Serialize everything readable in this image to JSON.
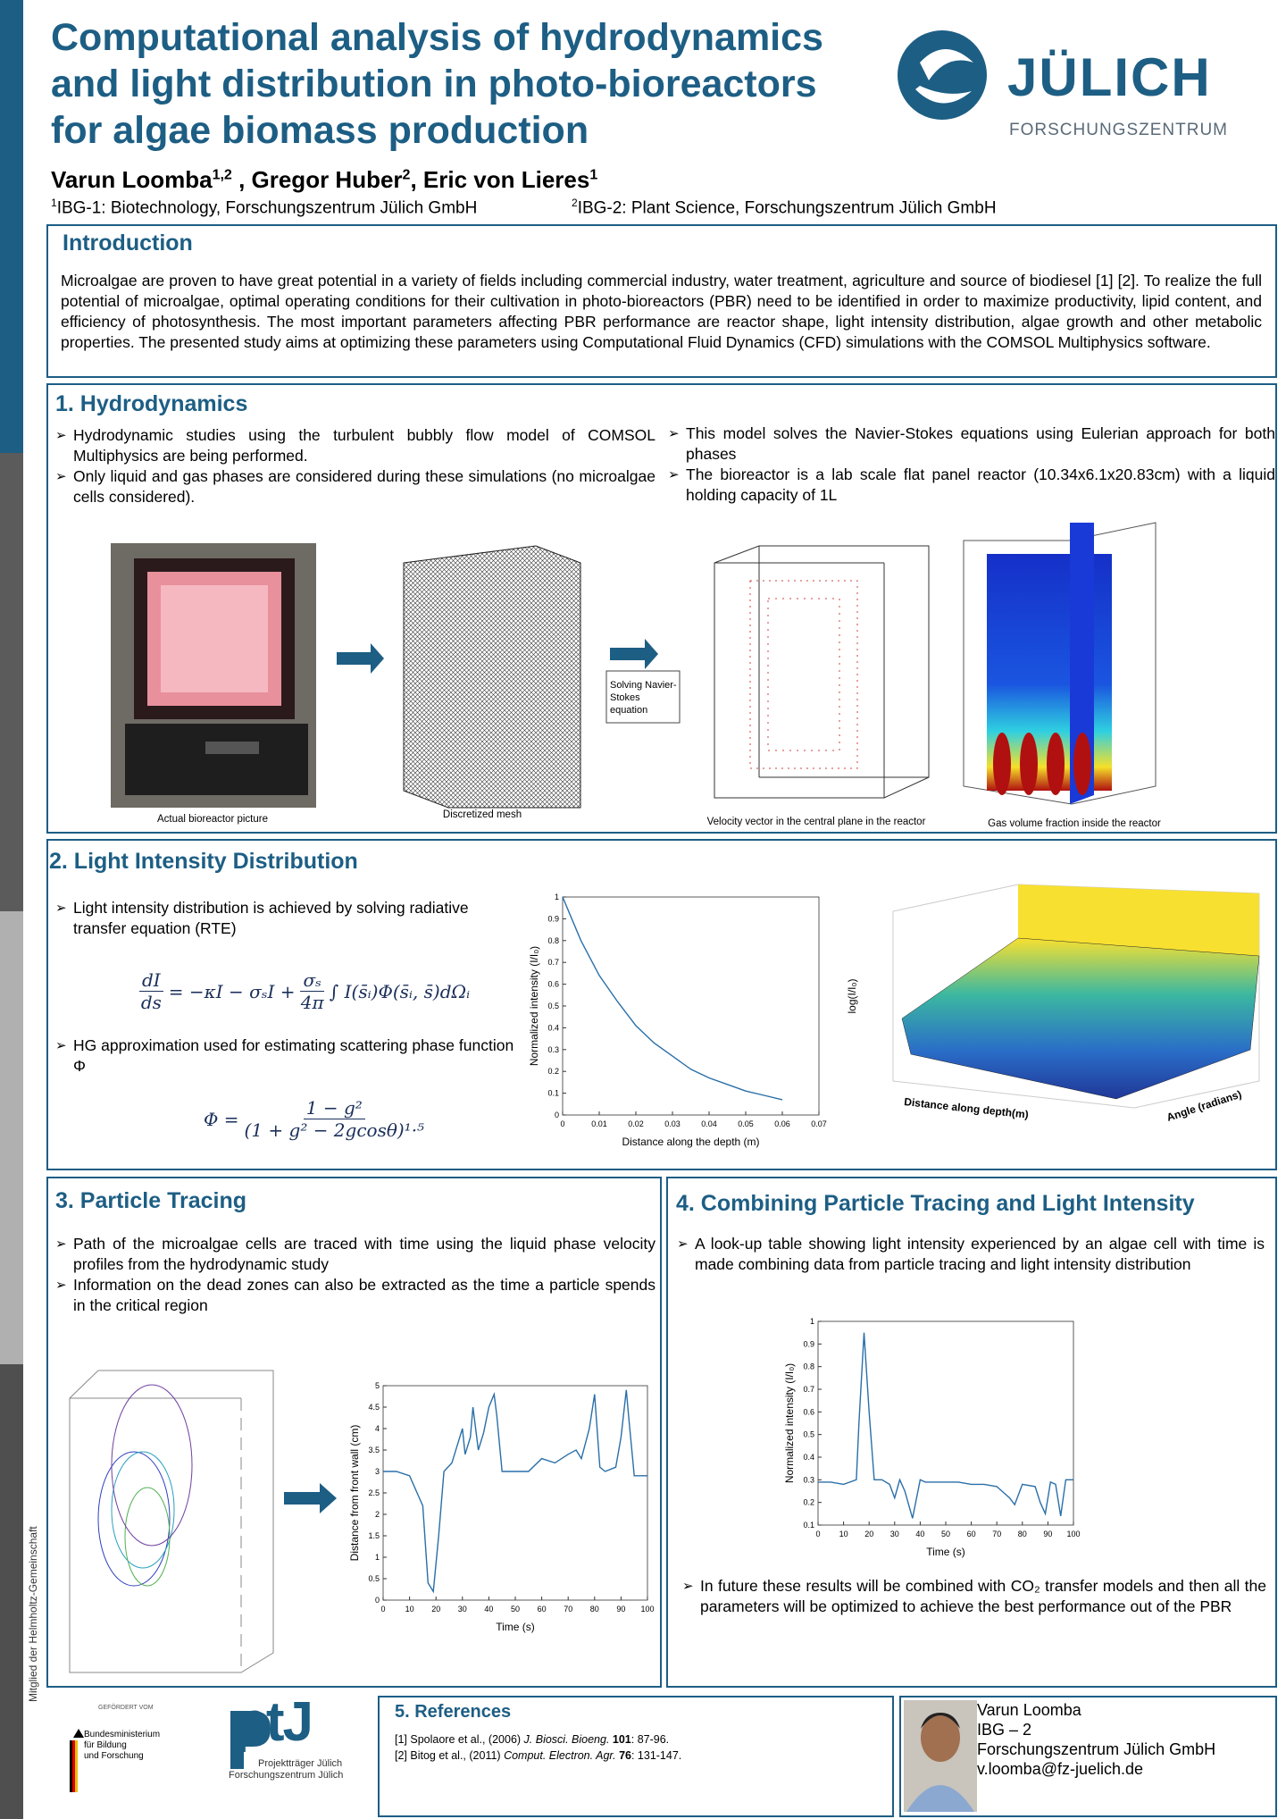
{
  "header": {
    "title_lines": [
      "Computational analysis of hydrodynamics",
      "and light distribution in photo-bioreactors",
      "for algae biomass production"
    ],
    "authors": [
      {
        "name": "Varun Loomba",
        "sup": "1,2"
      },
      {
        "name": " , Gregor Huber",
        "sup": "2"
      },
      {
        "name": ", Eric von Lieres",
        "sup": "1"
      }
    ],
    "affiliations": [
      {
        "sup": "1",
        "text": "IBG-1: Biotechnology, Forschungszentrum Jülich GmbH"
      },
      {
        "sup": "2",
        "text": "IBG-2: Plant Science, Forschungszentrum Jülich GmbH"
      }
    ],
    "logo": {
      "name": "JÜLICH",
      "sub": "FORSCHUNGSZENTRUM"
    }
  },
  "sidebar_text": "Mitglied der Helmholtz-Gemeinschaft",
  "introduction": {
    "heading": "Introduction",
    "text": "Microalgae are proven to have great potential in a variety of fields including commercial industry, water treatment, agriculture and source of biodiesel [1] [2]. To realize the full potential of microalgae, optimal operating conditions for their cultivation in photo-bioreactors (PBR) need to be identified in order to maximize productivity, lipid content, and efficiency of photosynthesis. The most important parameters affecting PBR performance are reactor shape, light intensity distribution, algae growth and other metabolic properties. The presented study aims at optimizing these parameters using Computational Fluid Dynamics (CFD) simulations with the COMSOL Multiphysics software."
  },
  "section1": {
    "heading": "1. Hydrodynamics",
    "bullets_left": [
      "Hydrodynamic studies using the turbulent bubbly flow model of COMSOL Multiphysics are being performed.",
      "Only liquid and gas phases are considered during these simulations (no microalgae cells considered)."
    ],
    "bullets_right": [
      "This model solves the Navier-Stokes equations using Eulerian approach for both phases",
      "The bioreactor is a lab scale flat panel reactor (10.34x6.1x20.83cm) with a liquid holding capacity of 1L"
    ],
    "captions": [
      "Actual bioreactor picture",
      "Discretized mesh",
      "Velocity vector in the central plane in the reactor",
      "Gas volume fraction inside the reactor"
    ],
    "step_box": "Solving Navier-Stokes equation"
  },
  "section2": {
    "heading": "2. Light Intensity Distribution",
    "bullets": [
      "Light intensity distribution is achieved by solving radiative transfer equation (RTE)",
      "HG approximation used for estimating scattering phase function Φ"
    ],
    "rte": {
      "lhs_num": "dI",
      "lhs_den": "ds",
      "mid": "= −κI − σₛI +",
      "frac_num": "σₛ",
      "frac_den": "4π",
      "rhs": "∫ I(s̄ᵢ)Φ(s̄ᵢ, s̄)dΩᵢ"
    },
    "hg": {
      "lhs": "Φ =",
      "num": "1 − g²",
      "den": "(1 + g² − 2gcosθ)¹·⁵"
    },
    "chart": {
      "type": "line",
      "color": "#2a6fa8",
      "x": [
        0,
        0.005,
        0.01,
        0.015,
        0.02,
        0.025,
        0.03,
        0.035,
        0.04,
        0.045,
        0.05,
        0.055,
        0.06
      ],
      "values": [
        1,
        0.8,
        0.64,
        0.52,
        0.41,
        0.33,
        0.27,
        0.21,
        0.17,
        0.14,
        0.11,
        0.09,
        0.07
      ],
      "xlim": [
        0,
        0.07
      ],
      "xticks": [
        0,
        0.01,
        0.02,
        0.03,
        0.04,
        0.05,
        0.06,
        0.07
      ],
      "ylim": [
        0,
        1
      ],
      "yticks": [
        0,
        0.1,
        0.2,
        0.3,
        0.4,
        0.5,
        0.6,
        0.7,
        0.8,
        0.9,
        1
      ],
      "x_label": "Distance along the depth (m)",
      "y_label": "Normalized intensity (I/I₀)"
    },
    "surface_labels": {
      "z": "log(I/I₀)",
      "x": "Distance along depth(m)",
      "y": "Angle (radians)"
    }
  },
  "section3": {
    "heading": "3. Particle Tracing",
    "bullets": [
      "Path of the microalgae cells are traced with time using the liquid phase velocity profiles from the hydrodynamic study",
      "Information on the dead zones can also be extracted as the time a particle spends in the critical region"
    ],
    "chart": {
      "type": "line",
      "color": "#2a6fa8",
      "x": [
        0,
        5,
        10,
        15,
        17,
        19,
        21,
        23,
        26,
        28,
        30,
        31,
        33,
        34,
        36,
        38,
        40,
        42,
        43,
        45,
        50,
        55,
        60,
        65,
        70,
        73,
        75,
        78,
        80,
        82,
        84,
        88,
        90,
        92,
        93,
        95,
        100
      ],
      "values": [
        3,
        3,
        2.9,
        2.2,
        0.4,
        0.2,
        1.5,
        3,
        3.2,
        3.6,
        4,
        3.4,
        3.8,
        4.5,
        3.5,
        3.9,
        4.5,
        4.8,
        4.3,
        3,
        3,
        3,
        3.3,
        3.2,
        3.4,
        3.5,
        3.3,
        4,
        4.8,
        3.1,
        3,
        3.1,
        3.8,
        4.9,
        4.2,
        2.9,
        2.9
      ],
      "xlim": [
        0,
        100
      ],
      "xticks": [
        0,
        10,
        20,
        30,
        40,
        50,
        60,
        70,
        80,
        90,
        100
      ],
      "ylim": [
        0,
        5
      ],
      "yticks": [
        0,
        0.5,
        1,
        1.5,
        2,
        2.5,
        3,
        3.5,
        4,
        4.5,
        5
      ],
      "x_label": "Time (s)",
      "y_label": "Distance from front wall (cm)"
    }
  },
  "section4": {
    "heading": "4. Combining Particle Tracing and Light Intensity",
    "bullets": [
      "A look-up table showing light intensity experienced by an algae cell with time is made combining data from particle tracing and light intensity distribution"
    ],
    "bullets_after": [
      "In future these results will be combined with CO₂ transfer models and then all the parameters will be optimized to achieve the best performance out of the PBR"
    ],
    "chart": {
      "type": "line",
      "color": "#2a6fa8",
      "x": [
        0,
        5,
        10,
        15,
        16,
        18,
        20,
        22,
        25,
        28,
        30,
        32,
        34,
        37,
        40,
        42,
        50,
        55,
        60,
        65,
        70,
        72,
        75,
        77,
        80,
        85,
        87,
        89,
        91,
        93,
        95,
        97,
        100
      ],
      "values": [
        0.29,
        0.29,
        0.28,
        0.3,
        0.55,
        0.95,
        0.6,
        0.3,
        0.3,
        0.28,
        0.22,
        0.3,
        0.25,
        0.13,
        0.3,
        0.29,
        0.29,
        0.29,
        0.28,
        0.28,
        0.27,
        0.25,
        0.22,
        0.19,
        0.28,
        0.27,
        0.2,
        0.15,
        0.29,
        0.28,
        0.14,
        0.3,
        0.3
      ],
      "xlim": [
        0,
        100
      ],
      "xticks": [
        0,
        10,
        20,
        30,
        40,
        50,
        60,
        70,
        80,
        90,
        100
      ],
      "ylim": [
        0.1,
        1
      ],
      "yticks": [
        0.1,
        0.2,
        0.3,
        0.4,
        0.5,
        0.6,
        0.7,
        0.8,
        0.9,
        1
      ],
      "x_label": "Time (s)",
      "y_label": "Normalized intensity (I/I₀)"
    }
  },
  "references": {
    "heading": "5. References",
    "items": [
      {
        "pre": "[1] Spolaore et al., (2006) ",
        "journal": "J. Biosci. Bioeng.",
        "volume": "101",
        "post": ": 87-96."
      },
      {
        "pre": "[2] Bitog et al., (2011) ",
        "journal": "Comput. Electron. Agr.",
        "volume": "76",
        "post": ": 131-147."
      }
    ]
  },
  "sponsors": {
    "funded_by": "GEFÖRDERT VOM",
    "ministry_lines": [
      "Bundesministerium",
      "für Bildung",
      "und Forschung"
    ],
    "ptj": "ptJ",
    "ptj_lines": [
      "Projektträger Jülich",
      "Forschungszentrum Jülich"
    ]
  },
  "contact": [
    "Varun Loomba",
    "IBG – 2",
    "Forschungszentrum Jülich GmbH",
    "v.loomba@fz-juelich.de"
  ]
}
